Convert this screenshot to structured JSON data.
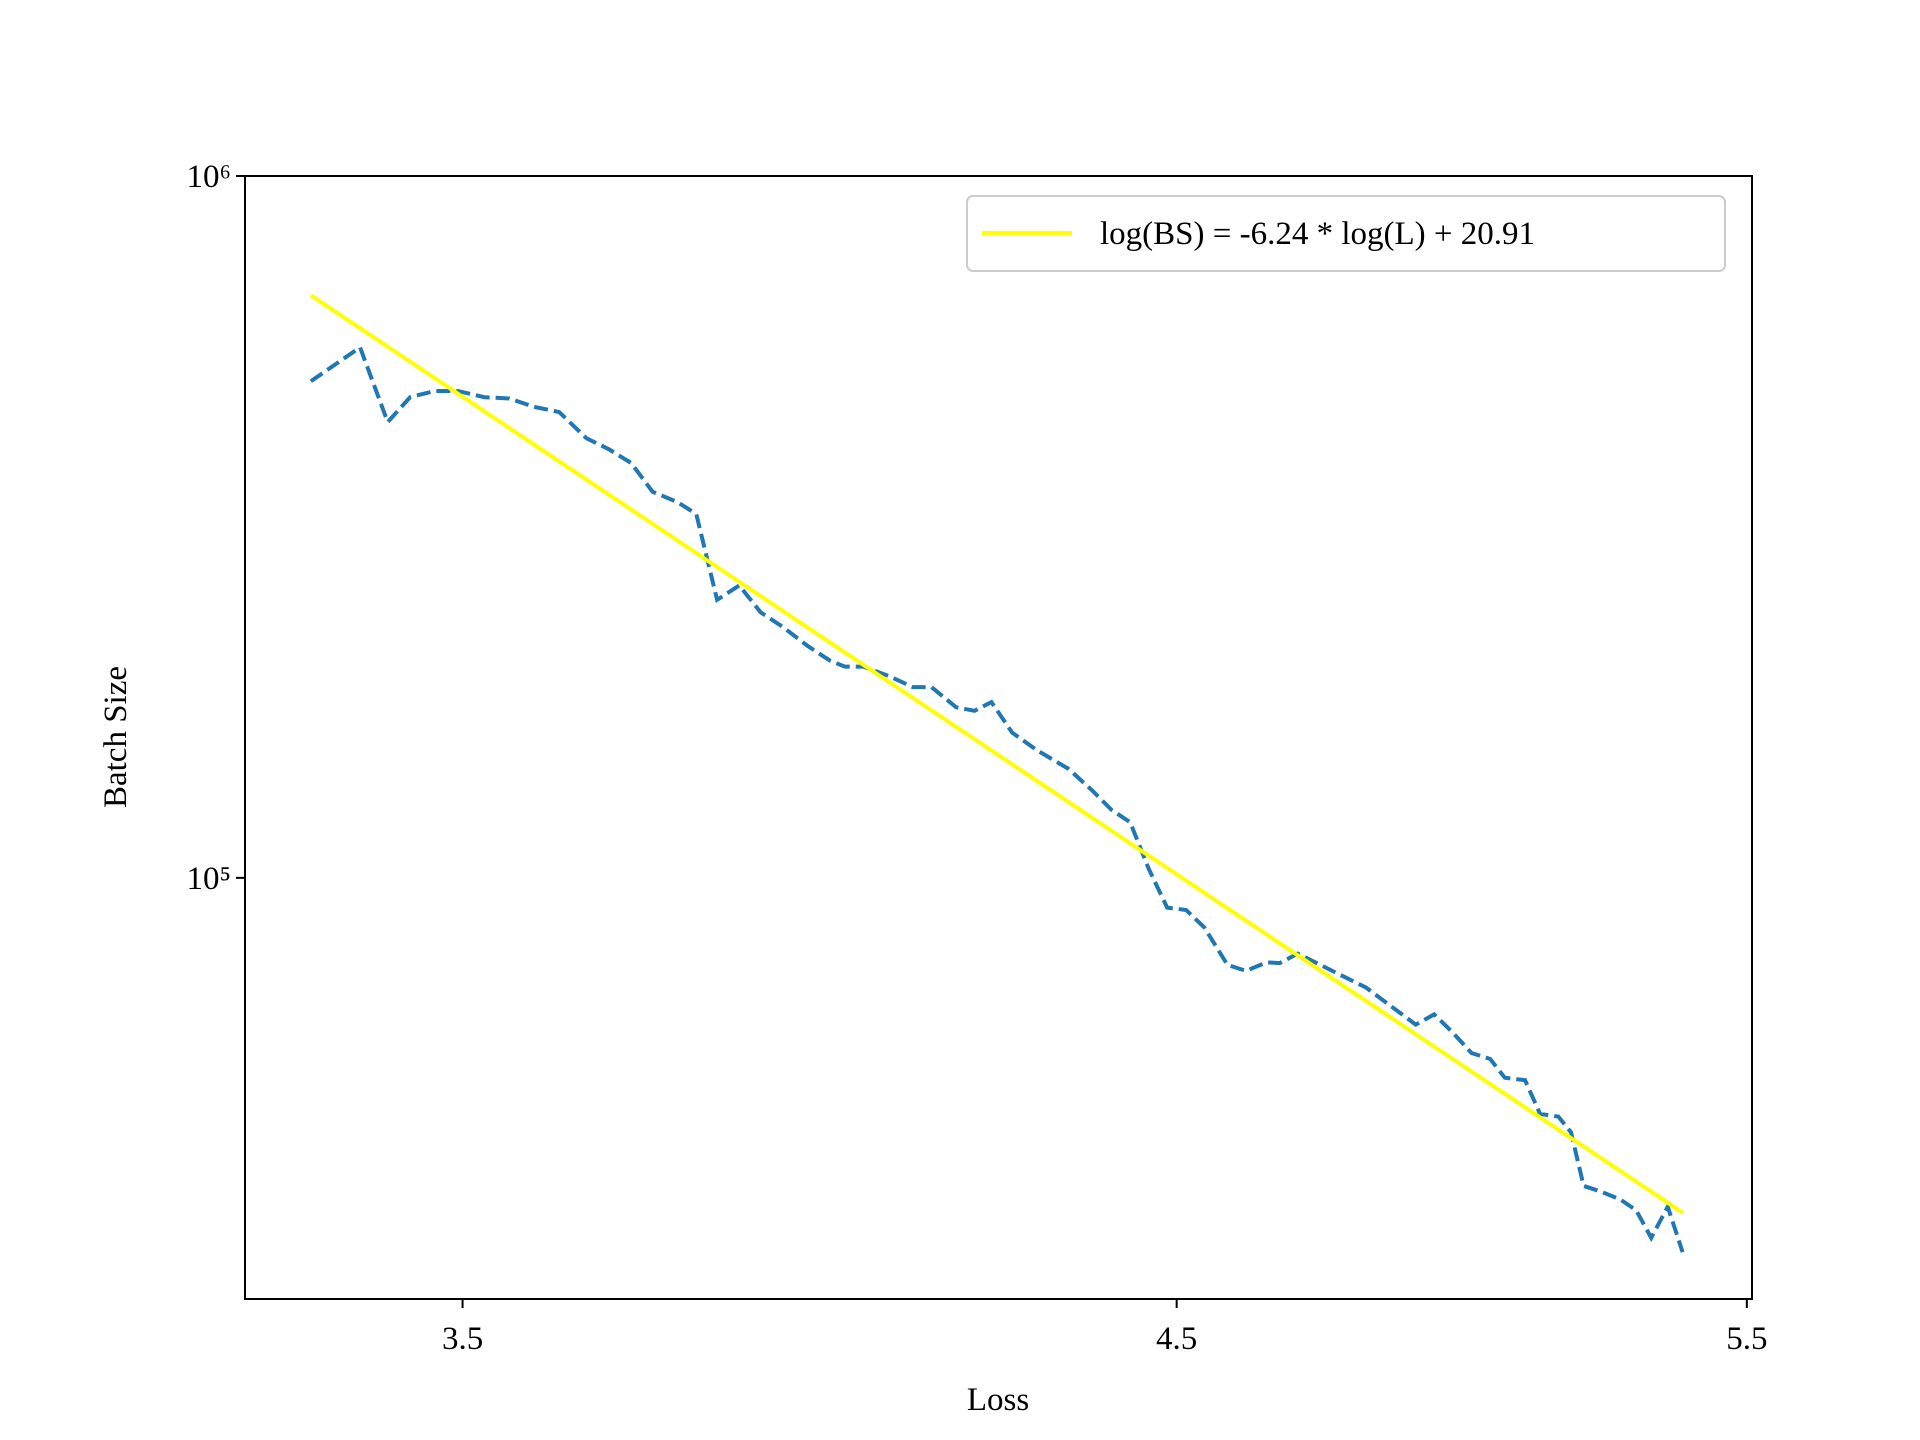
{
  "chart_data": {
    "type": "line",
    "xlabel": "Loss",
    "ylabel": "Batch Size",
    "xscale": "log",
    "yscale": "log",
    "xlim": [
      3.242,
      5.51
    ],
    "ylim": [
      25119,
      1000000
    ],
    "xticks": [
      3.5,
      4.5,
      5.5
    ],
    "yticks": [
      {
        "value": 100000,
        "label": "10⁵"
      },
      {
        "value": 1000000,
        "label": "10⁶"
      }
    ],
    "legend": "upper right",
    "series": [
      {
        "color": "#1f77b4",
        "dashed": true,
        "x": [
          3.318,
          3.376,
          3.409,
          3.436,
          3.466,
          3.494,
          3.527,
          3.558,
          3.589,
          3.621,
          3.656,
          3.685,
          3.714,
          3.742,
          3.775,
          3.8,
          3.828,
          3.858,
          3.887,
          3.917,
          3.952,
          3.983,
          4.004,
          4.03,
          4.066,
          4.101,
          4.128,
          4.164,
          4.191,
          4.216,
          4.247,
          4.284,
          4.332,
          4.369,
          4.398,
          4.427,
          4.456,
          4.485,
          4.515,
          4.544,
          4.581,
          4.611,
          4.645,
          4.666,
          4.696,
          4.737,
          4.779,
          4.81,
          4.852,
          4.895,
          4.927,
          4.96,
          4.992,
          5.025,
          5.051,
          5.087,
          5.114,
          5.147,
          5.17,
          5.193,
          5.226,
          5.261,
          5.29,
          5.318,
          5.349,
          5.377
        ],
        "values": [
          510000,
          570000,
          446000,
          484000,
          494000,
          494000,
          484000,
          482000,
          469000,
          461000,
          423000,
          408000,
          390000,
          355000,
          343000,
          330000,
          249000,
          261000,
          239000,
          228000,
          214000,
          204000,
          200000,
          200000,
          194000,
          187000,
          187000,
          175000,
          173000,
          178000,
          161000,
          152000,
          143000,
          133000,
          125000,
          120000,
          103000,
          90700,
          90000,
          85000,
          75200,
          73700,
          75800,
          75600,
          78000,
          74900,
          71900,
          69800,
          65700,
          61800,
          63900,
          60100,
          56300,
          55200,
          51900,
          51500,
          46100,
          45700,
          43400,
          36400,
          35700,
          34800,
          33600,
          30700,
          34000,
          29300
        ]
      },
      {
        "name": "log(BS) = -6.24 * log(L) + 20.91",
        "color": "#ffff00",
        "x": [
          3.318,
          5.378
        ],
        "values": [
          676000,
          33300
        ]
      }
    ]
  }
}
